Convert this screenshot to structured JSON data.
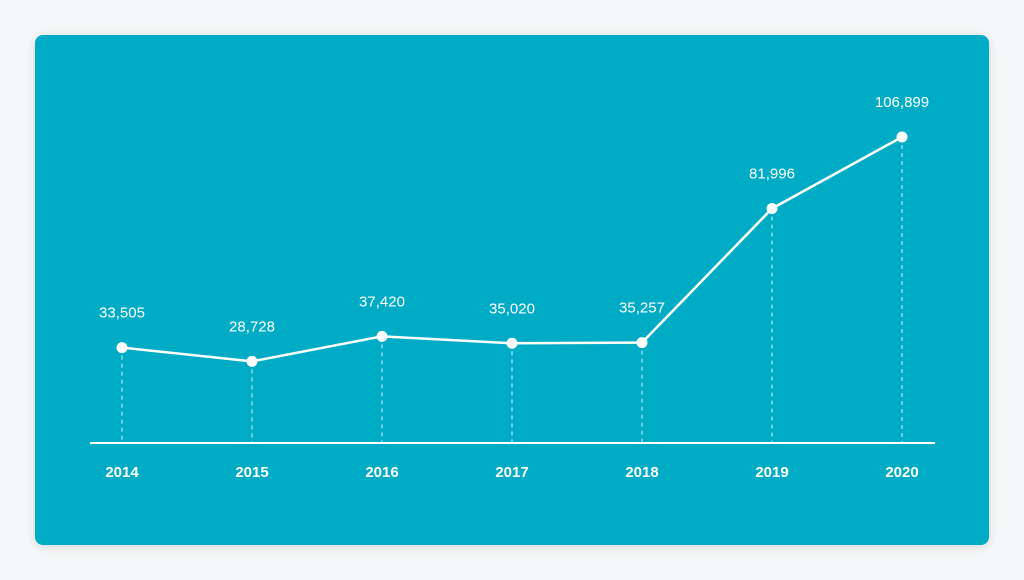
{
  "colors": {
    "background": "#00abc6",
    "foreground": "#ffffff"
  },
  "chart_data": {
    "type": "line",
    "categories": [
      "2014",
      "2015",
      "2016",
      "2017",
      "2018",
      "2019",
      "2020"
    ],
    "values": [
      33505,
      28728,
      37420,
      35020,
      35257,
      81996,
      106899
    ],
    "value_labels": [
      "33,505",
      "28,728",
      "37,420",
      "35,020",
      "35,257",
      "81,996",
      "106,899"
    ],
    "title": "",
    "xlabel": "",
    "ylabel": "",
    "grid": false,
    "legend": "none"
  }
}
